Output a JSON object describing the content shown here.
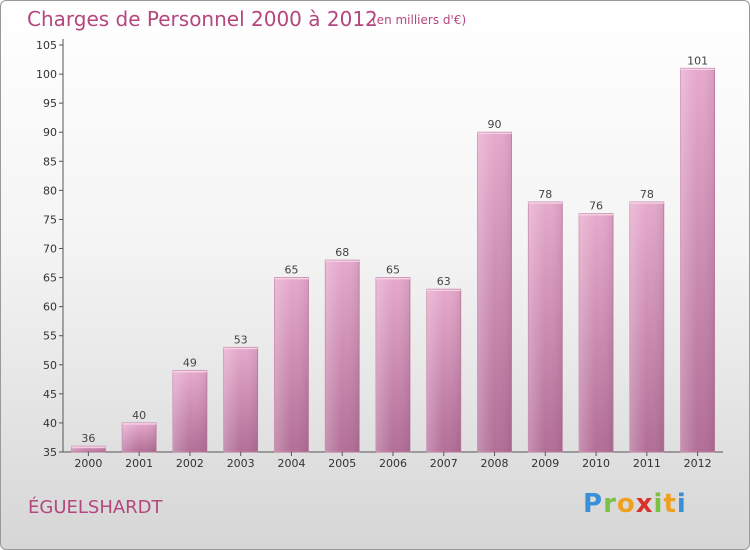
{
  "chart_data": {
    "type": "bar",
    "title": "Charges de Personnel 2000 à 2012",
    "subtitle": "(en milliers d'€)",
    "categories": [
      "2000",
      "2001",
      "2002",
      "2003",
      "2004",
      "2005",
      "2006",
      "2007",
      "2008",
      "2009",
      "2010",
      "2011",
      "2012"
    ],
    "values": [
      36,
      40,
      49,
      53,
      65,
      68,
      65,
      63,
      90,
      78,
      76,
      78,
      101
    ],
    "ylim": [
      35,
      105
    ],
    "yticks": [
      35,
      40,
      45,
      50,
      55,
      60,
      65,
      70,
      75,
      80,
      85,
      90,
      95,
      100,
      105
    ],
    "grid": false,
    "bar_color": "#d98fb8"
  },
  "location": "ÉGUELSHARDT",
  "logo": {
    "letters": [
      "P",
      "r",
      "o",
      "x",
      "i",
      "t",
      "i"
    ],
    "colors": [
      "#3a8fd6",
      "#7cc242",
      "#f0a020",
      "#d9302c",
      "#7cc242",
      "#f0a020",
      "#3a8fd6"
    ]
  }
}
